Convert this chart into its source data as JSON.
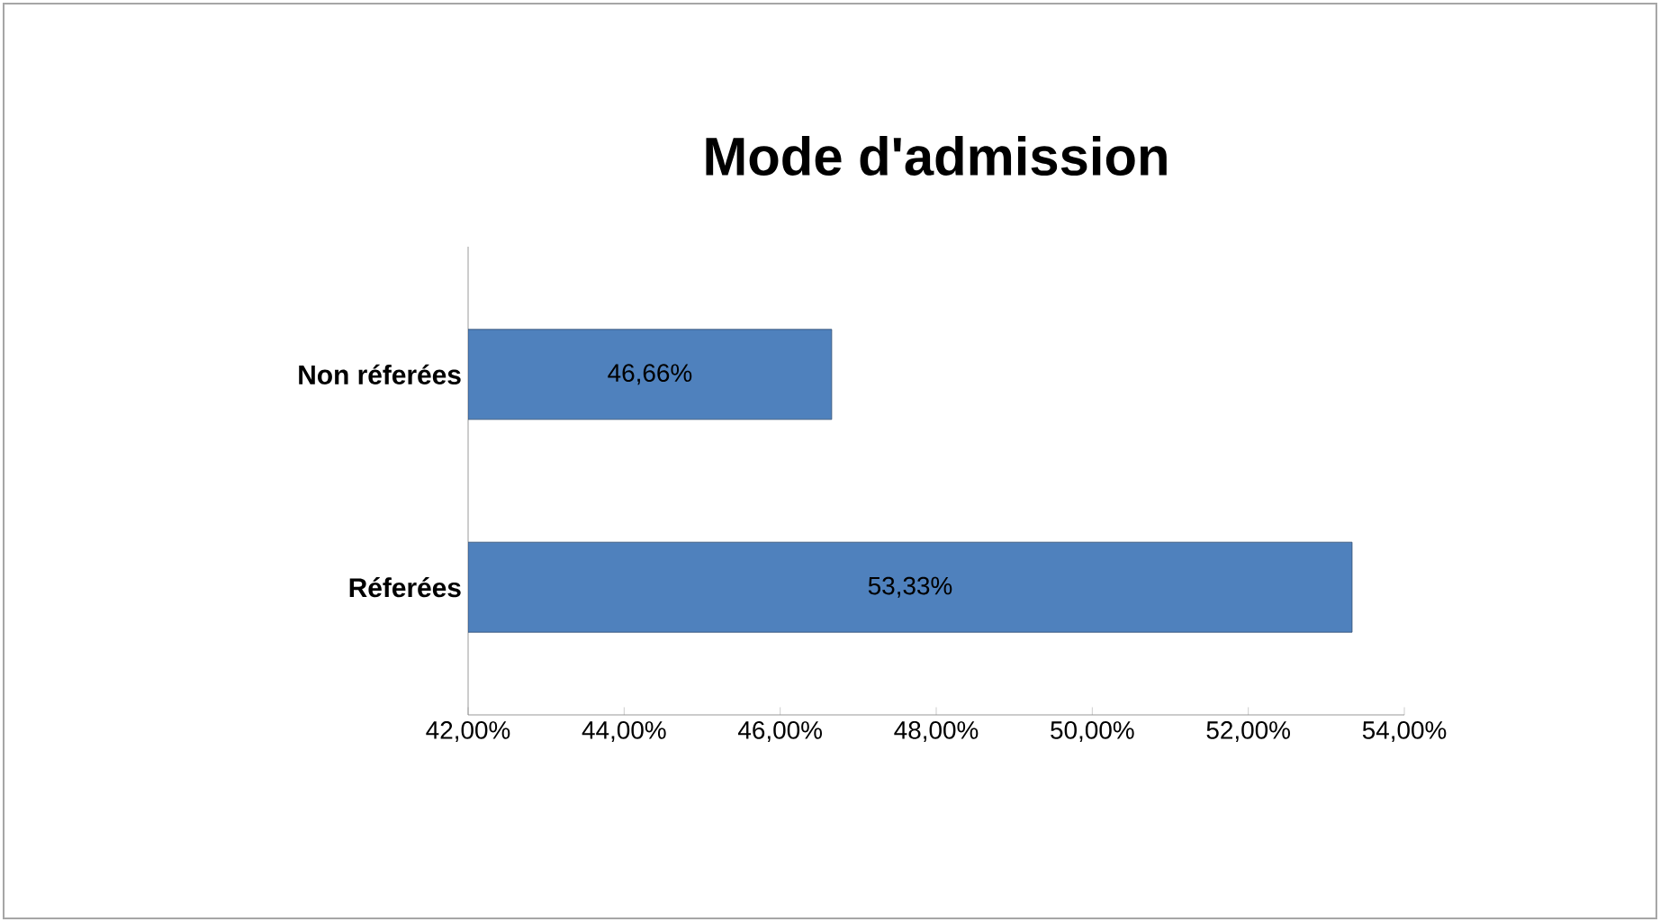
{
  "chart_data": {
    "type": "bar",
    "orientation": "horizontal",
    "title": "Mode d'admission",
    "categories": [
      "Non réferées",
      "Réferées"
    ],
    "values": [
      46.66,
      53.33
    ],
    "color": "#4f81bd",
    "value_labels": [
      "46,66%",
      "53,33%"
    ],
    "xlim": [
      42,
      54
    ],
    "xticks": [
      {
        "value": 42,
        "label": "42,00%"
      },
      {
        "value": 44,
        "label": "44,00%"
      },
      {
        "value": 46,
        "label": "46,00%"
      },
      {
        "value": 48,
        "label": "48,00%"
      },
      {
        "value": 50,
        "label": "50,00%"
      },
      {
        "value": 52,
        "label": "52,00%"
      },
      {
        "value": 54,
        "label": "54,00%"
      }
    ]
  }
}
